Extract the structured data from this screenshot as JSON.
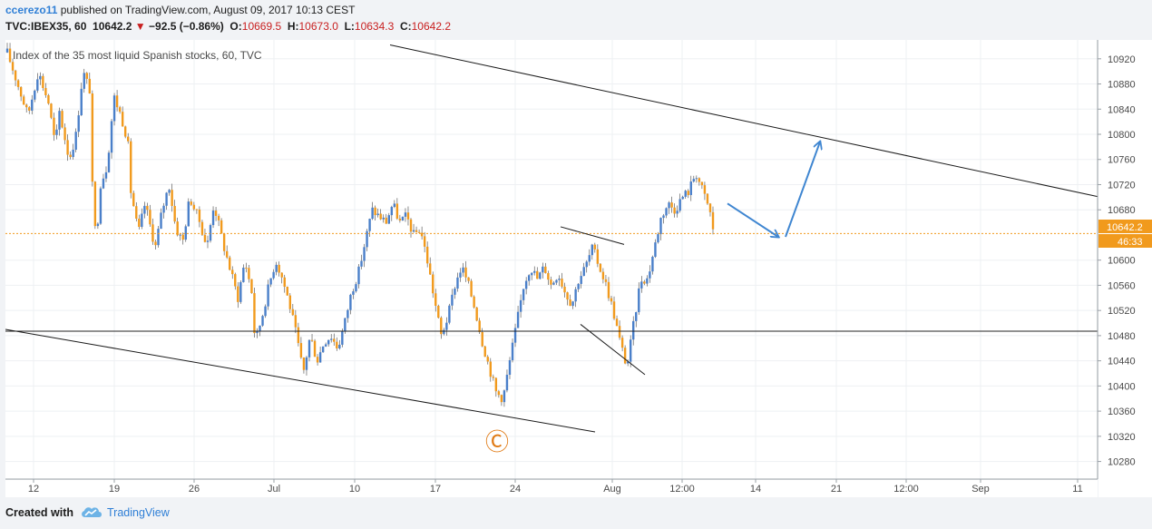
{
  "header": {
    "author": "ccerezo11",
    "published_text": "published on TradingView.com, August 09, 2017 10:13 CEST",
    "symbol": "TVC:IBEX35, 60",
    "last": "10642.2",
    "change": "−92.5 (−0.86%)",
    "open_label": "O:",
    "open": "10669.5",
    "high_label": "H:",
    "high": "10673.0",
    "low_label": "L:",
    "low": "10634.3",
    "close_label": "C:",
    "close": "10642.2"
  },
  "footer": {
    "created_with": "Created with",
    "brand": "TradingView"
  },
  "colors": {
    "up": "#4a7fc9",
    "down": "#f19a1d",
    "last_price_line": "#f19a1d",
    "arrow": "#3f86d1",
    "trendline": "#1a1a1a",
    "wave_label": "#e07a14"
  },
  "icons": [
    "tradingview-cloud-icon",
    "down-triangle-icon"
  ],
  "chart_data": {
    "type": "candlestick",
    "title": "Index of the 35 most liquid Spanish stocks, 60, TVC",
    "y_ticks": [
      10920,
      10880,
      10840,
      10800,
      10760,
      10720,
      10680,
      10600,
      10560,
      10520,
      10480,
      10440,
      10400,
      10360,
      10320,
      10280
    ],
    "ylim": [
      10252,
      10950
    ],
    "x_ticks": [
      "12",
      "19",
      "26",
      "Jul",
      "10",
      "17",
      "24",
      "Aug",
      "12:00",
      "14",
      "21",
      "12:00",
      "Sep",
      "11"
    ],
    "last_price": 10642.2,
    "last_price_label": "10642.2",
    "countdown_label": "46:33",
    "price_path": [
      [
        0,
        10930
      ],
      [
        3,
        10880
      ],
      [
        6,
        10830
      ],
      [
        9,
        10900
      ],
      [
        12,
        10850
      ],
      [
        14,
        10780
      ],
      [
        15,
        10840
      ],
      [
        18,
        10760
      ],
      [
        20,
        10800
      ],
      [
        22,
        10900
      ],
      [
        24,
        10870
      ],
      [
        25,
        10660
      ],
      [
        26,
        10640
      ],
      [
        27,
        10720
      ],
      [
        29,
        10750
      ],
      [
        31,
        10860
      ],
      [
        33,
        10830
      ],
      [
        35,
        10790
      ],
      [
        36,
        10700
      ],
      [
        37,
        10680
      ],
      [
        38,
        10640
      ],
      [
        40,
        10690
      ],
      [
        43,
        10620
      ],
      [
        45,
        10680
      ],
      [
        47,
        10720
      ],
      [
        49,
        10650
      ],
      [
        51,
        10630
      ],
      [
        53,
        10700
      ],
      [
        56,
        10660
      ],
      [
        58,
        10620
      ],
      [
        60,
        10690
      ],
      [
        63,
        10620
      ],
      [
        65,
        10580
      ],
      [
        67,
        10540
      ],
      [
        69,
        10600
      ],
      [
        71,
        10550
      ],
      [
        72,
        10470
      ],
      [
        74,
        10510
      ],
      [
        76,
        10560
      ],
      [
        78,
        10600
      ],
      [
        80,
        10570
      ],
      [
        82,
        10530
      ],
      [
        84,
        10480
      ],
      [
        86,
        10420
      ],
      [
        88,
        10480
      ],
      [
        90,
        10440
      ],
      [
        92,
        10470
      ],
      [
        94,
        10480
      ],
      [
        96,
        10460
      ],
      [
        98,
        10500
      ],
      [
        100,
        10550
      ],
      [
        102,
        10580
      ],
      [
        104,
        10630
      ],
      [
        106,
        10680
      ],
      [
        108,
        10670
      ],
      [
        110,
        10660
      ],
      [
        112,
        10690
      ],
      [
        114,
        10660
      ],
      [
        116,
        10670
      ],
      [
        118,
        10640
      ],
      [
        120,
        10650
      ],
      [
        122,
        10600
      ],
      [
        124,
        10540
      ],
      [
        126,
        10480
      ],
      [
        128,
        10510
      ],
      [
        130,
        10560
      ],
      [
        132,
        10590
      ],
      [
        134,
        10560
      ],
      [
        136,
        10520
      ],
      [
        138,
        10470
      ],
      [
        140,
        10430
      ],
      [
        142,
        10390
      ],
      [
        144,
        10380
      ],
      [
        146,
        10440
      ],
      [
        148,
        10500
      ],
      [
        150,
        10560
      ],
      [
        152,
        10590
      ],
      [
        154,
        10570
      ],
      [
        156,
        10590
      ],
      [
        158,
        10560
      ],
      [
        160,
        10580
      ],
      [
        162,
        10550
      ],
      [
        164,
        10530
      ],
      [
        166,
        10570
      ],
      [
        168,
        10590
      ],
      [
        170,
        10620
      ],
      [
        172,
        10590
      ],
      [
        174,
        10560
      ],
      [
        176,
        10520
      ],
      [
        178,
        10470
      ],
      [
        180,
        10430
      ],
      [
        182,
        10500
      ],
      [
        184,
        10570
      ],
      [
        186,
        10570
      ],
      [
        188,
        10620
      ],
      [
        190,
        10670
      ],
      [
        192,
        10690
      ],
      [
        194,
        10680
      ],
      [
        196,
        10700
      ],
      [
        198,
        10710
      ],
      [
        200,
        10740
      ],
      [
        202,
        10710
      ],
      [
        204,
        10680
      ],
      [
        205,
        10650
      ]
    ],
    "annotations": {
      "wave_label": "Ⓒ",
      "trendlines": [
        {
          "from": [
            "17",
            10942
          ],
          "to": [
            "1 Sep",
            10701
          ]
        },
        {
          "from": [
            "12",
            10490
          ],
          "to": [
            "31",
            10327
          ]
        },
        {
          "from": [
            "27",
            10653
          ],
          "to": [
            "2 Aug",
            10625
          ]
        },
        {
          "from": [
            "28",
            10498
          ],
          "to": [
            "Aug",
            10418
          ]
        }
      ],
      "horizontal_level": 10487,
      "projection_arrows": [
        {
          "from": [
            "13 Aug",
            10690
          ],
          "to": [
            "15 Aug",
            10637
          ]
        },
        {
          "from": [
            "15 Aug",
            10637
          ],
          "to": [
            "18 Aug",
            10788
          ]
        }
      ]
    }
  }
}
